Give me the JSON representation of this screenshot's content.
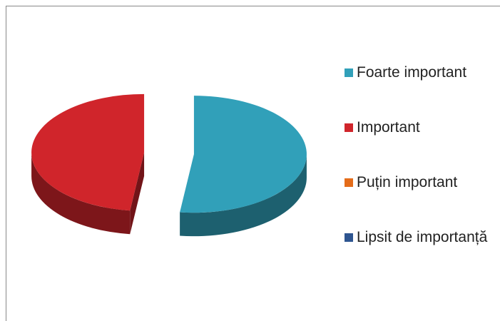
{
  "chart_data": {
    "type": "pie3d",
    "categories": [
      "Foarte important",
      "Important",
      "Puțin important",
      "Lipsit de importanță"
    ],
    "values": [
      52,
      48,
      0,
      0
    ],
    "colors": [
      "#31a0b9",
      "#d0252b",
      "#e46c1a",
      "#2e5590"
    ],
    "exploded": true,
    "legend": "right"
  }
}
